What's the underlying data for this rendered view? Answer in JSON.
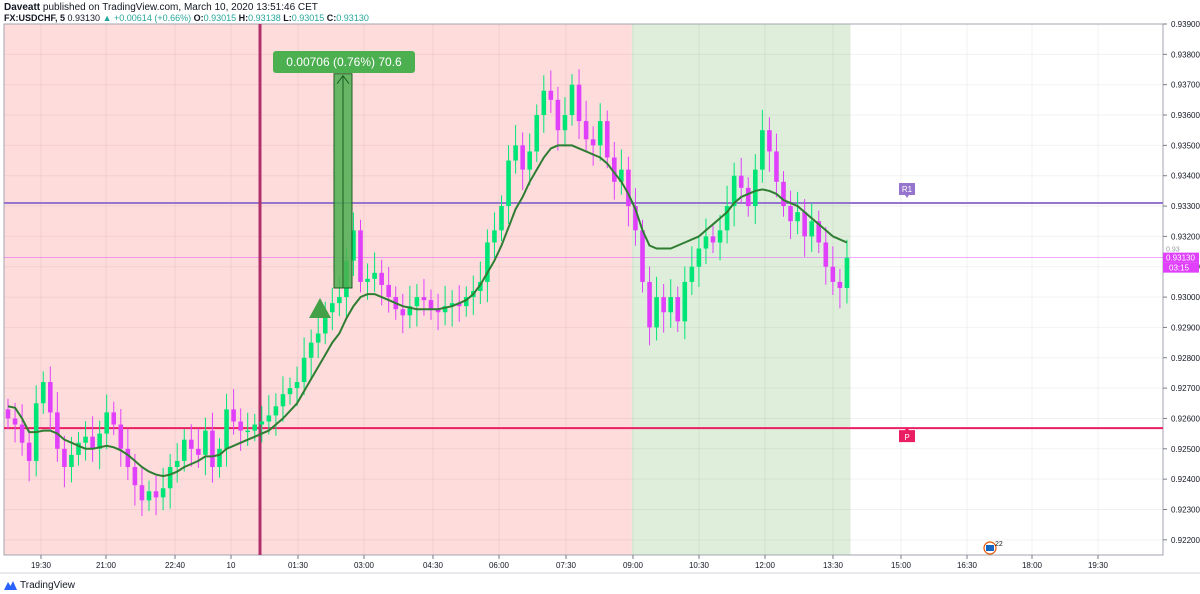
{
  "header": {
    "author": "Daveatt",
    "published": "published on TradingView.com, March 10, 2020 13:51:46 CET",
    "symbol": "FX:USDCHF, 5",
    "last": "0.93130",
    "change_arrow": "▲",
    "change": "+0.00614 (+0.66%)",
    "o_label": "O:",
    "o": "0.93015",
    "h_label": "H:",
    "h": "0.93138",
    "l_label": "L:",
    "l": "0.93015",
    "c_label": "C:",
    "c": "0.93130"
  },
  "footer": {
    "brand": "TradingView",
    "logo_icon": "tradingview-logo-icon"
  },
  "colors": {
    "bull": "#00e676",
    "bear": "#e040fb",
    "ma": "#2e7d32",
    "bg_session1": "#ffdcdc",
    "bg_session2": "#dfeedb",
    "level_r1": "#9575cd",
    "level_p": "#e91e63",
    "vline": "#b0306a",
    "measure": "#4caf50"
  },
  "chart_data": {
    "type": "candlestick",
    "ylim": [
      0.9215,
      0.939
    ],
    "yticks": [
      "0.93900",
      "0.93800",
      "0.93700",
      "0.93600",
      "0.93500",
      "0.93400",
      "0.93300",
      "0.93200",
      "0.93100",
      "0.93000",
      "0.92900",
      "0.92800",
      "0.92700",
      "0.92600",
      "0.92500",
      "0.92400",
      "0.92300",
      "0.92200"
    ],
    "xticks": [
      "19:30",
      "21:00",
      "22:40",
      "10",
      "01:30",
      "03:00",
      "04:30",
      "06:00",
      "07:30",
      "09:00",
      "10:30",
      "12:00",
      "13:30",
      "15:00",
      "16:30",
      "18:00",
      "19:30"
    ],
    "price_closes": [
      0.926,
      0.9258,
      0.9252,
      0.9246,
      0.9265,
      0.9272,
      0.9262,
      0.925,
      0.9244,
      0.9248,
      0.9252,
      0.9254,
      0.925,
      0.9255,
      0.9262,
      0.9258,
      0.925,
      0.9244,
      0.9238,
      0.9233,
      0.9236,
      0.9234,
      0.9237,
      0.9244,
      0.9246,
      0.9253,
      0.925,
      0.9248,
      0.9256,
      0.9244,
      0.925,
      0.9263,
      0.9259,
      0.9256,
      0.9256,
      0.9258,
      0.9259,
      0.9261,
      0.9264,
      0.9268,
      0.927,
      0.9272,
      0.928,
      0.9285,
      0.9288,
      0.9295,
      0.9298,
      0.93,
      0.9312,
      0.9322,
      0.9305,
      0.9306,
      0.9308,
      0.9304,
      0.93,
      0.9296,
      0.9294,
      0.9297,
      0.93,
      0.9299,
      0.9296,
      0.9295,
      0.9297,
      0.9298,
      0.9297,
      0.93,
      0.9302,
      0.9305,
      0.9318,
      0.9322,
      0.933,
      0.9345,
      0.935,
      0.9342,
      0.9348,
      0.936,
      0.9368,
      0.9365,
      0.9355,
      0.936,
      0.937,
      0.9358,
      0.9352,
      0.935,
      0.9358,
      0.9346,
      0.9338,
      0.9342,
      0.933,
      0.9322,
      0.9305,
      0.929,
      0.93,
      0.9295,
      0.93,
      0.9292,
      0.9305,
      0.931,
      0.9316,
      0.932,
      0.9318,
      0.9322,
      0.933,
      0.934,
      0.9336,
      0.933,
      0.9342,
      0.9355,
      0.9348,
      0.9338,
      0.933,
      0.9325,
      0.9328,
      0.932,
      0.9325,
      0.9318,
      0.931,
      0.9305,
      0.9303,
      0.9313
    ],
    "ma_values": [
      0.9264,
      0.92635,
      0.926,
      0.92555,
      0.92555,
      0.9256,
      0.9256,
      0.9255,
      0.9253,
      0.9252,
      0.9251,
      0.925,
      0.925,
      0.92505,
      0.9251,
      0.92505,
      0.92495,
      0.9248,
      0.9246,
      0.9244,
      0.92425,
      0.92415,
      0.9241,
      0.92415,
      0.92425,
      0.9244,
      0.9245,
      0.9246,
      0.92475,
      0.92475,
      0.9248,
      0.925,
      0.9251,
      0.9252,
      0.9253,
      0.9254,
      0.9255,
      0.9256,
      0.9258,
      0.926,
      0.92625,
      0.9265,
      0.9269,
      0.9273,
      0.9277,
      0.9281,
      0.9285,
      0.9288,
      0.9293,
      0.9297,
      0.93,
      0.9301,
      0.9301,
      0.93,
      0.9299,
      0.9298,
      0.9297,
      0.92965,
      0.9296,
      0.9296,
      0.9296,
      0.9296,
      0.92965,
      0.9297,
      0.9298,
      0.9299,
      0.9301,
      0.9304,
      0.9308,
      0.9312,
      0.9317,
      0.9323,
      0.9329,
      0.9333,
      0.9338,
      0.9342,
      0.9346,
      0.9349,
      0.935,
      0.935,
      0.935,
      0.9349,
      0.9348,
      0.9347,
      0.9346,
      0.9344,
      0.9341,
      0.9338,
      0.9334,
      0.9329,
      0.9322,
      0.9317,
      0.9316,
      0.9316,
      0.9316,
      0.9317,
      0.9318,
      0.9319,
      0.932,
      0.9322,
      0.9324,
      0.9326,
      0.9328,
      0.9331,
      0.9333,
      0.9334,
      0.9335,
      0.93355,
      0.9335,
      0.9334,
      0.9332,
      0.9331,
      0.933,
      0.9328,
      0.9326,
      0.9324,
      0.9322,
      0.932,
      0.9319,
      0.9318
    ],
    "sessions": [
      {
        "name": "session-1",
        "start_index": 0,
        "end_index": 88,
        "color": "#ffdcdc"
      },
      {
        "name": "session-2",
        "start_index": 89,
        "end_index": 119,
        "color": "#dfeedb"
      }
    ],
    "levels": [
      {
        "label": "R1",
        "value": 0.9331,
        "color": "#9575cd"
      },
      {
        "label": "P",
        "value": 0.92568,
        "color": "#e91e63"
      }
    ],
    "current_price_label": "0.93130",
    "countdown_label": "03:15",
    "faint_price_label": "0.93",
    "vertical_line_time": "day break 10",
    "measure": {
      "from": 0.9303,
      "to": 0.93736,
      "text": "0.00706 (0.76%) 70.6"
    },
    "signal": "buy triangle",
    "event_badge": "22"
  }
}
